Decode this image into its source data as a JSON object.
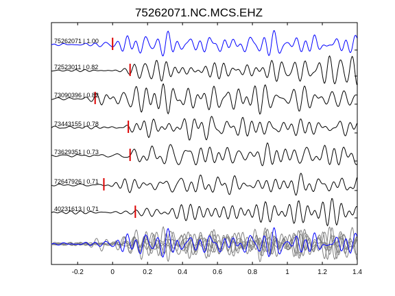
{
  "chart_data": {
    "type": "line",
    "title": "75262071.NC.MCS.EHZ",
    "xlabel": "",
    "ylabel": "",
    "xlim": [
      -0.35,
      1.4
    ],
    "x_ticks": [
      -0.2,
      0,
      0.2,
      0.4,
      0.6,
      0.8,
      1,
      1.2,
      1.4
    ],
    "x_tick_labels": [
      "-0.2",
      "0",
      "0.2",
      "0.4",
      "0.6",
      "0.8",
      "1",
      "1.2",
      "1.4"
    ],
    "grid": false,
    "traces": [
      {
        "label": "75262071 | 1.00",
        "pick": 0.0,
        "color": "#0000ff"
      },
      {
        "label": "72523011 | 0.82",
        "pick": 0.1,
        "color": "#000000"
      },
      {
        "label": "73090396 | 0.82",
        "pick": -0.1,
        "color": "#000000"
      },
      {
        "label": "73443155 | 0.78",
        "pick": 0.09,
        "color": "#000000"
      },
      {
        "label": "73629351 | 0.73",
        "pick": 0.1,
        "color": "#000000"
      },
      {
        "label": "72647926 | 0.71",
        "pick": -0.05,
        "color": "#000000"
      },
      {
        "label": "40231613 | 0.71",
        "pick": 0.13,
        "color": "#000000"
      }
    ],
    "stack": {
      "overlay_color": "#808080",
      "reference_color": "#0000ff"
    },
    "pick_color": "#dd0000"
  }
}
